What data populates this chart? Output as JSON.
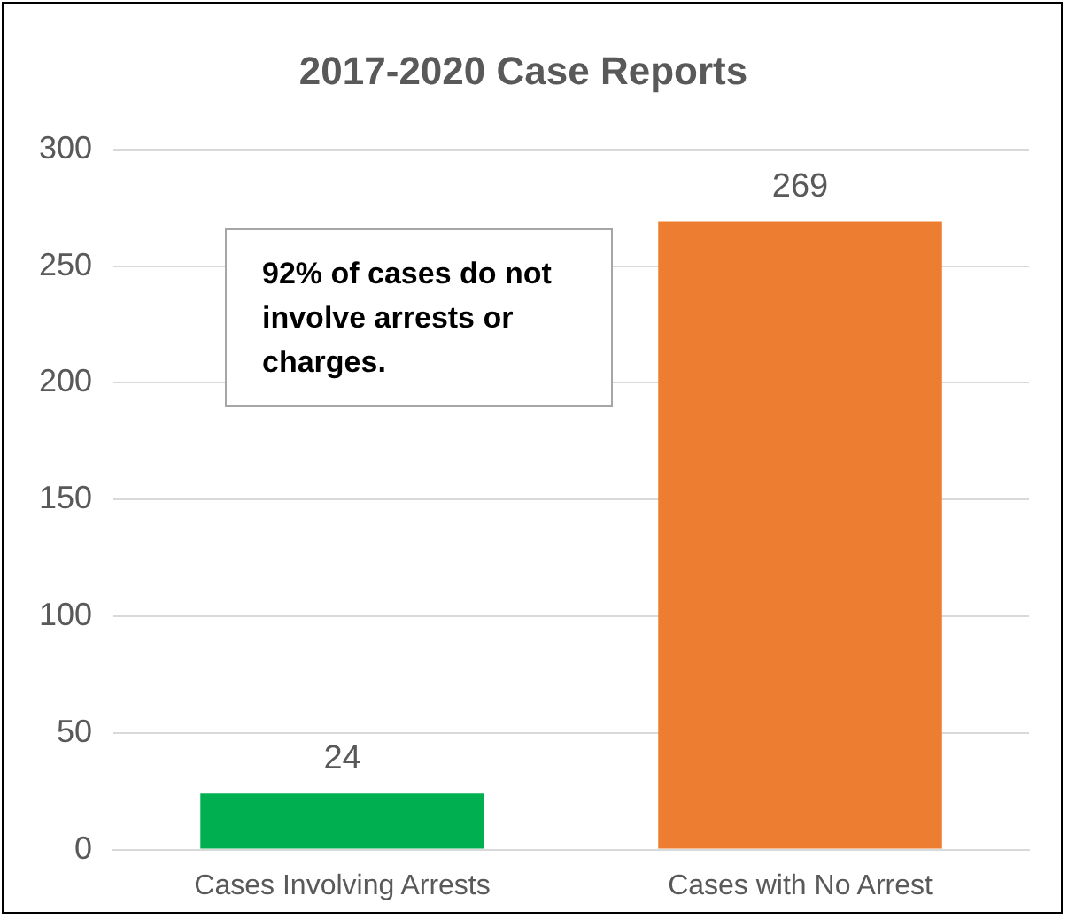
{
  "chart_data": {
    "type": "bar",
    "title": "2017-2020 Case Reports",
    "categories": [
      "Cases Involving Arrests",
      "Cases with No Arrest"
    ],
    "values": [
      24,
      269
    ],
    "colors": [
      "#00b050",
      "#ed7d31"
    ],
    "ylim": [
      0,
      300
    ],
    "yticks": [
      0,
      50,
      100,
      150,
      200,
      250,
      300
    ],
    "grid": "y",
    "legend": false,
    "data_labels": true,
    "annotations": [
      "92% of cases do not involve arrests or charges."
    ]
  }
}
